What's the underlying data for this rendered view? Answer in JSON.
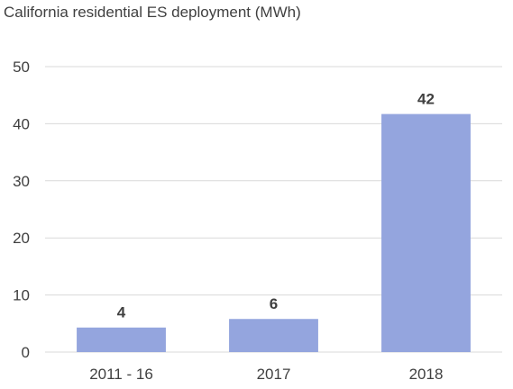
{
  "chart_data": {
    "type": "bar",
    "title": "California residential ES deployment (MWh)",
    "xlabel": "",
    "ylabel": "",
    "categories": [
      "2011 - 16",
      "2017",
      "2018"
    ],
    "values": [
      4.3,
      5.8,
      41.7
    ],
    "data_labels": [
      "4",
      "6",
      "42"
    ],
    "ylim": [
      0,
      50
    ],
    "yticks": [
      0,
      10,
      20,
      30,
      40,
      50
    ],
    "grid": true,
    "legend": "none",
    "colors": {
      "bar": "#94a5de",
      "grid": "#d9d9d9",
      "text": "#404040"
    }
  }
}
